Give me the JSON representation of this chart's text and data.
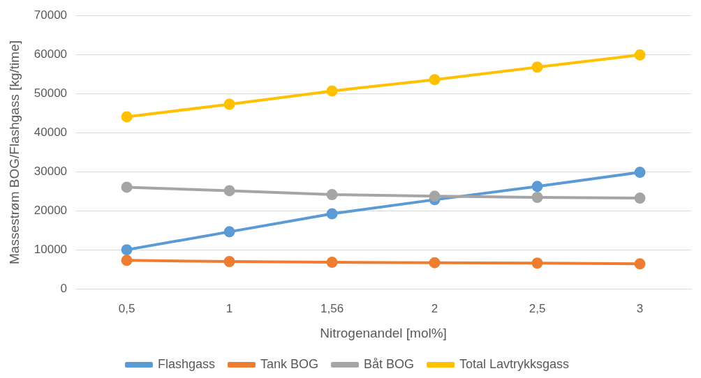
{
  "chart_data": {
    "type": "line",
    "xlabel": "Nitrogenandel [mol%]",
    "ylabel": "Massestrøm BOG/Flashgass [kg/time]",
    "categories": [
      "0,5",
      "1",
      "1,56",
      "2",
      "2,5",
      "3"
    ],
    "series": [
      {
        "name": "Flashgass",
        "color": "#5b9bd5",
        "values": [
          10100,
          14700,
          19300,
          22900,
          26300,
          29900
        ]
      },
      {
        "name": "Tank BOG",
        "color": "#ed7d31",
        "values": [
          7400,
          7100,
          6900,
          6800,
          6700,
          6500
        ]
      },
      {
        "name": "Båt BOG",
        "color": "#a5a5a5",
        "values": [
          26100,
          25200,
          24200,
          23800,
          23500,
          23300
        ]
      },
      {
        "name": "Total Lavtrykksgass",
        "color": "#ffc000",
        "values": [
          44100,
          47300,
          50700,
          53600,
          56800,
          59900
        ]
      }
    ],
    "ylim": [
      0,
      70000
    ],
    "yticks": [
      0,
      10000,
      20000,
      30000,
      40000,
      50000,
      60000,
      70000
    ],
    "grid": "y",
    "legend": "bottom",
    "marker": "circle",
    "line_style": "solid"
  }
}
